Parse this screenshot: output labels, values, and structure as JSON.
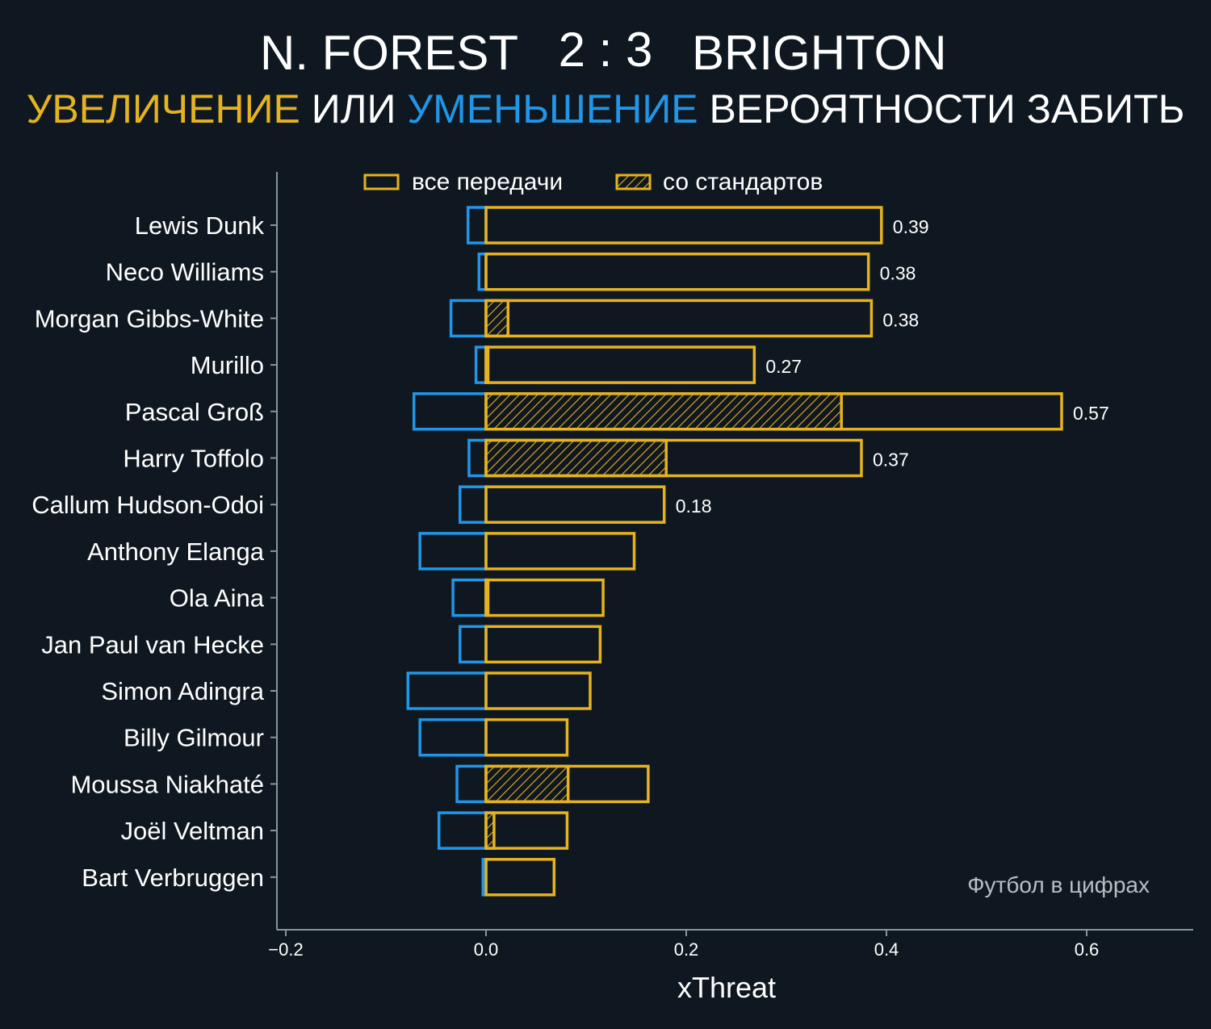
{
  "header": {
    "home_team": "N. FOREST",
    "score": "2 : 3",
    "away_team": "BRIGHTON",
    "subtitle_part1": "УВЕЛИЧЕНИЕ",
    "subtitle_part2": " ИЛИ ",
    "subtitle_part3": "УМЕНЬШЕНИЕ",
    "subtitle_part4": " ВЕРОЯТНОСТИ ЗАБИТЬ"
  },
  "watermark": "Футбол в цифрах",
  "colors": {
    "background": "#0f1820",
    "increase": "#e6b320",
    "decrease": "#2196e8",
    "axis": "#8a949c"
  },
  "chart_data": {
    "type": "bar",
    "orientation": "horizontal",
    "xlabel": "xThreat",
    "ylabel": "",
    "xlim": [
      -0.2,
      0.7
    ],
    "xticks": [
      -0.2,
      0.0,
      0.2,
      0.4,
      0.6
    ],
    "xtick_labels": [
      "−0.2",
      "0.0",
      "0.2",
      "0.4",
      "0.6"
    ],
    "grid": false,
    "legend": {
      "placement": "top-center",
      "entries": [
        "все передачи",
        "со стандартов"
      ]
    },
    "categories": [
      "Lewis Dunk",
      "Neco Williams",
      "Morgan Gibbs-White",
      "Murillo",
      "Pascal Groß",
      "Harry Toffolo",
      "Callum Hudson-Odoi",
      "Anthony Elanga",
      "Ola Aina",
      "Jan Paul van Hecke",
      "Simon Adingra",
      "Billy Gilmour",
      "Moussa Niakhaté",
      "Joël Veltman",
      "Bart Verbruggen"
    ],
    "series": [
      {
        "name": "все передачи",
        "values": [
          0.395,
          0.382,
          0.385,
          0.268,
          0.575,
          0.375,
          0.178,
          0.148,
          0.117,
          0.114,
          0.104,
          0.081,
          0.162,
          0.081,
          0.068
        ]
      },
      {
        "name": "со стандартов",
        "values": [
          0,
          0,
          0.022,
          0.002,
          0.355,
          0.18,
          0,
          0,
          0.002,
          0,
          0,
          0,
          0.082,
          0.008,
          0
        ]
      },
      {
        "name": "decrease",
        "values": [
          -0.018,
          -0.007,
          -0.035,
          -0.01,
          -0.072,
          -0.017,
          -0.026,
          -0.066,
          -0.033,
          -0.026,
          -0.078,
          -0.066,
          -0.029,
          -0.047,
          -0.003
        ]
      }
    ],
    "value_labels": [
      "0.39",
      "0.38",
      "0.38",
      "0.27",
      "0.57",
      "0.37",
      "0.18",
      "",
      "",
      "",
      "",
      "",
      "",
      "",
      ""
    ]
  }
}
